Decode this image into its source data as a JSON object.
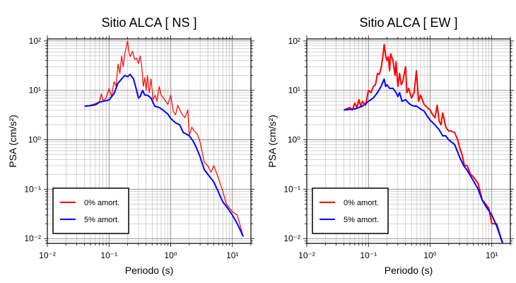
{
  "chart_data": [
    {
      "type": "line",
      "title": "Sitio ALCA [ NS ]",
      "xlabel": "Periodo (s)",
      "ylabel": "PSA (cm/s²)",
      "xscale": "log",
      "yscale": "log",
      "xlim": [
        0.01,
        20
      ],
      "ylim": [
        0.008,
        110
      ],
      "grid": true,
      "legend": "bottom-left",
      "x_ticks": [
        {
          "value": 0.01,
          "label": "10⁻²"
        },
        {
          "value": 0.1,
          "label": "10⁻¹"
        },
        {
          "value": 1,
          "label": "10⁰"
        },
        {
          "value": 10,
          "label": "10¹"
        }
      ],
      "y_ticks": [
        {
          "value": 0.01,
          "label": "10⁻²"
        },
        {
          "value": 0.1,
          "label": "10⁻¹"
        },
        {
          "value": 1,
          "label": "10⁰"
        },
        {
          "value": 10,
          "label": "10¹"
        },
        {
          "value": 100,
          "label": "10²"
        }
      ],
      "series": [
        {
          "name": "0% amort.",
          "color": "#ff0000",
          "points": [
            [
              0.04,
              4.8
            ],
            [
              0.05,
              5.0
            ],
            [
              0.06,
              5.4
            ],
            [
              0.07,
              5.8
            ],
            [
              0.075,
              8.5
            ],
            [
              0.08,
              6.2
            ],
            [
              0.09,
              7.0
            ],
            [
              0.1,
              11.0
            ],
            [
              0.11,
              7.5
            ],
            [
              0.12,
              15.0
            ],
            [
              0.13,
              12.0
            ],
            [
              0.14,
              34.0
            ],
            [
              0.15,
              22.0
            ],
            [
              0.16,
              50.0
            ],
            [
              0.17,
              30.0
            ],
            [
              0.18,
              55.0
            ],
            [
              0.19,
              75.0
            ],
            [
              0.2,
              100.0
            ],
            [
              0.21,
              60.0
            ],
            [
              0.22,
              48.0
            ],
            [
              0.24,
              62.0
            ],
            [
              0.26,
              42.0
            ],
            [
              0.28,
              45.0
            ],
            [
              0.3,
              35.0
            ],
            [
              0.32,
              50.0
            ],
            [
              0.34,
              30.0
            ],
            [
              0.36,
              12.0
            ],
            [
              0.38,
              18.0
            ],
            [
              0.4,
              10.0
            ],
            [
              0.42,
              20.0
            ],
            [
              0.45,
              9.0
            ],
            [
              0.48,
              17.0
            ],
            [
              0.52,
              6.5
            ],
            [
              0.56,
              8.0
            ],
            [
              0.6,
              6.0
            ],
            [
              0.65,
              12.0
            ],
            [
              0.7,
              8.0
            ],
            [
              0.8,
              6.5
            ],
            [
              0.9,
              5.2
            ],
            [
              1.0,
              8.0
            ],
            [
              1.1,
              3.8
            ],
            [
              1.2,
              3.2
            ],
            [
              1.3,
              5.0
            ],
            [
              1.5,
              3.4
            ],
            [
              1.7,
              2.8
            ],
            [
              1.9,
              4.0
            ],
            [
              2.0,
              1.2
            ],
            [
              2.2,
              1.8
            ],
            [
              2.4,
              1.5
            ],
            [
              2.7,
              1.3
            ],
            [
              3.0,
              0.9
            ],
            [
              3.5,
              0.35
            ],
            [
              4.0,
              0.3
            ],
            [
              4.5,
              0.22
            ],
            [
              5.0,
              0.3
            ],
            [
              6.0,
              0.16
            ],
            [
              7.0,
              0.09
            ],
            [
              8.0,
              0.05
            ],
            [
              10.0,
              0.035
            ],
            [
              12.0,
              0.03
            ],
            [
              15.0,
              0.011
            ]
          ]
        },
        {
          "name": "5% amort.",
          "color": "#0000ff",
          "points": [
            [
              0.04,
              4.8
            ],
            [
              0.05,
              4.9
            ],
            [
              0.06,
              5.1
            ],
            [
              0.07,
              5.8
            ],
            [
              0.08,
              6.0
            ],
            [
              0.1,
              6.4
            ],
            [
              0.12,
              8.5
            ],
            [
              0.14,
              14.0
            ],
            [
              0.16,
              17.0
            ],
            [
              0.18,
              20.0
            ],
            [
              0.2,
              19.0
            ],
            [
              0.22,
              21.0
            ],
            [
              0.25,
              17.0
            ],
            [
              0.28,
              10.0
            ],
            [
              0.3,
              7.0
            ],
            [
              0.32,
              7.5
            ],
            [
              0.35,
              10.0
            ],
            [
              0.38,
              8.0
            ],
            [
              0.42,
              8.0
            ],
            [
              0.48,
              7.0
            ],
            [
              0.55,
              4.8
            ],
            [
              0.65,
              4.5
            ],
            [
              0.75,
              4.0
            ],
            [
              0.9,
              3.3
            ],
            [
              1.0,
              2.7
            ],
            [
              1.2,
              2.2
            ],
            [
              1.4,
              2.0
            ],
            [
              1.6,
              1.4
            ],
            [
              1.8,
              1.3
            ],
            [
              2.0,
              1.2
            ],
            [
              2.3,
              0.95
            ],
            [
              2.6,
              0.7
            ],
            [
              3.0,
              0.45
            ],
            [
              3.5,
              0.25
            ],
            [
              4.0,
              0.2
            ],
            [
              5.0,
              0.14
            ],
            [
              6.0,
              0.085
            ],
            [
              7.0,
              0.055
            ],
            [
              8.0,
              0.045
            ],
            [
              10.0,
              0.03
            ],
            [
              12.0,
              0.02
            ],
            [
              15.0,
              0.011
            ]
          ]
        }
      ]
    },
    {
      "type": "line",
      "title": "Sitio ALCA [ EW ]",
      "xlabel": "Periodo (s)",
      "ylabel": "PSA (cm/s²)",
      "xscale": "log",
      "yscale": "log",
      "xlim": [
        0.01,
        20
      ],
      "ylim": [
        0.008,
        110
      ],
      "grid": true,
      "legend": "bottom-left",
      "x_ticks": [
        {
          "value": 0.01,
          "label": "10⁻²"
        },
        {
          "value": 0.1,
          "label": "10⁻¹"
        },
        {
          "value": 1,
          "label": "10⁰"
        },
        {
          "value": 10,
          "label": "10¹"
        }
      ],
      "y_ticks": [
        {
          "value": 0.01,
          "label": "10⁻²"
        },
        {
          "value": 0.1,
          "label": "10⁻¹"
        },
        {
          "value": 1,
          "label": "10⁰"
        },
        {
          "value": 10,
          "label": "10¹"
        },
        {
          "value": 100,
          "label": "10²"
        }
      ],
      "series": [
        {
          "name": "0% amort.",
          "color": "#ff0000",
          "points": [
            [
              0.04,
              4.0
            ],
            [
              0.05,
              4.5
            ],
            [
              0.055,
              4.0
            ],
            [
              0.06,
              5.5
            ],
            [
              0.065,
              4.5
            ],
            [
              0.07,
              6.5
            ],
            [
              0.075,
              4.8
            ],
            [
              0.08,
              6.0
            ],
            [
              0.09,
              5.0
            ],
            [
              0.1,
              10.0
            ],
            [
              0.11,
              9.0
            ],
            [
              0.12,
              12.0
            ],
            [
              0.13,
              13.0
            ],
            [
              0.14,
              22.0
            ],
            [
              0.15,
              21.0
            ],
            [
              0.16,
              28.0
            ],
            [
              0.17,
              45.0
            ],
            [
              0.18,
              85.0
            ],
            [
              0.19,
              50.0
            ],
            [
              0.2,
              40.0
            ],
            [
              0.21,
              48.0
            ],
            [
              0.22,
              25.0
            ],
            [
              0.23,
              55.0
            ],
            [
              0.25,
              40.0
            ],
            [
              0.27,
              20.0
            ],
            [
              0.28,
              38.0
            ],
            [
              0.3,
              12.0
            ],
            [
              0.32,
              22.0
            ],
            [
              0.34,
              13.0
            ],
            [
              0.36,
              15.0
            ],
            [
              0.4,
              30.0
            ],
            [
              0.42,
              9.0
            ],
            [
              0.45,
              11.0
            ],
            [
              0.5,
              7.0
            ],
            [
              0.55,
              9.0
            ],
            [
              0.6,
              25.0
            ],
            [
              0.65,
              6.0
            ],
            [
              0.7,
              8.0
            ],
            [
              0.8,
              5.2
            ],
            [
              0.9,
              4.5
            ],
            [
              1.0,
              4.0
            ],
            [
              1.1,
              3.2
            ],
            [
              1.2,
              2.8
            ],
            [
              1.3,
              5.0
            ],
            [
              1.4,
              2.4
            ],
            [
              1.5,
              2.0
            ],
            [
              1.6,
              3.5
            ],
            [
              1.8,
              1.8
            ],
            [
              2.0,
              1.5
            ],
            [
              2.2,
              1.5
            ],
            [
              2.5,
              1.4
            ],
            [
              2.8,
              1.0
            ],
            [
              3.0,
              0.7
            ],
            [
              3.3,
              0.5
            ],
            [
              3.6,
              0.3
            ],
            [
              4.0,
              0.3
            ],
            [
              4.5,
              0.2
            ],
            [
              5.0,
              0.18
            ],
            [
              6.0,
              0.13
            ],
            [
              7.0,
              0.06
            ],
            [
              8.0,
              0.05
            ],
            [
              9.0,
              0.04
            ],
            [
              10.0,
              0.02
            ],
            [
              12.0,
              0.02
            ],
            [
              15.0,
              0.008
            ]
          ]
        },
        {
          "name": "5% amort.",
          "color": "#0000ff",
          "points": [
            [
              0.04,
              4.0
            ],
            [
              0.06,
              4.2
            ],
            [
              0.08,
              4.8
            ],
            [
              0.1,
              6.0
            ],
            [
              0.12,
              7.0
            ],
            [
              0.14,
              9.0
            ],
            [
              0.16,
              12.0
            ],
            [
              0.18,
              17.0
            ],
            [
              0.19,
              12.0
            ],
            [
              0.2,
              13.0
            ],
            [
              0.22,
              11.0
            ],
            [
              0.25,
              11.0
            ],
            [
              0.28,
              9.0
            ],
            [
              0.3,
              7.5
            ],
            [
              0.32,
              9.0
            ],
            [
              0.35,
              6.0
            ],
            [
              0.4,
              6.5
            ],
            [
              0.45,
              5.5
            ],
            [
              0.5,
              5.0
            ],
            [
              0.55,
              4.8
            ],
            [
              0.6,
              4.8
            ],
            [
              0.7,
              4.2
            ],
            [
              0.8,
              3.8
            ],
            [
              0.9,
              3.0
            ],
            [
              1.0,
              2.5
            ],
            [
              1.2,
              2.0
            ],
            [
              1.4,
              1.6
            ],
            [
              1.6,
              1.2
            ],
            [
              1.8,
              1.2
            ],
            [
              2.0,
              1.0
            ],
            [
              2.5,
              0.8
            ],
            [
              3.0,
              0.45
            ],
            [
              3.5,
              0.3
            ],
            [
              4.0,
              0.24
            ],
            [
              5.0,
              0.15
            ],
            [
              6.0,
              0.1
            ],
            [
              7.0,
              0.06
            ],
            [
              8.0,
              0.045
            ],
            [
              10.0,
              0.03
            ],
            [
              12.0,
              0.018
            ],
            [
              15.0,
              0.008
            ]
          ]
        }
      ]
    }
  ]
}
